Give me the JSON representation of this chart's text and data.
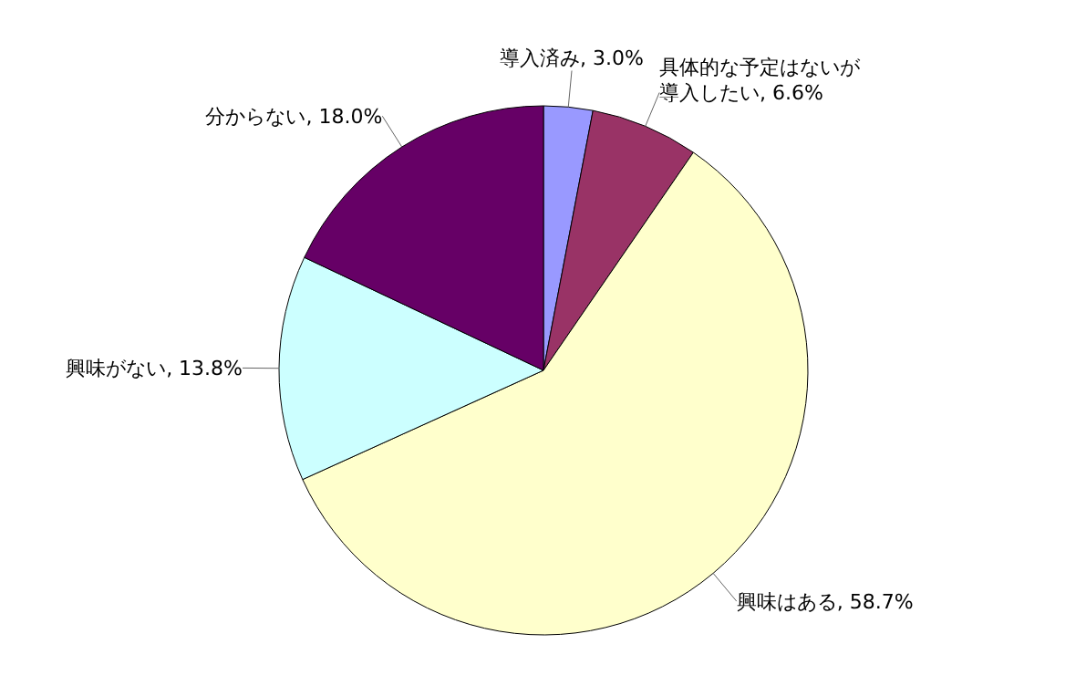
{
  "chart_data": {
    "type": "pie",
    "categories": [
      "導入済み",
      "具体的な予定はないが導入したい",
      "興味はある",
      "興味がない",
      "分からない"
    ],
    "values": [
      3.0,
      6.6,
      58.7,
      13.8,
      18.0
    ],
    "value_labels": [
      "3.0%",
      "6.6%",
      "58.7%",
      "13.8%",
      "18.0%"
    ],
    "colors": [
      "#9999ff",
      "#993366",
      "#ffffcc",
      "#ccffff",
      "#660066"
    ]
  }
}
